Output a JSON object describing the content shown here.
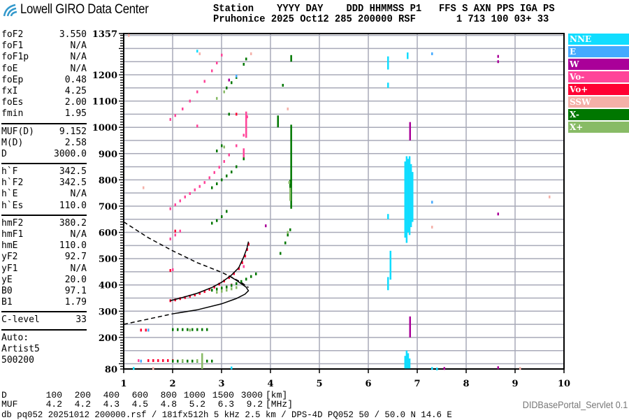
{
  "header": {
    "logo_text": "Lowell GIRO Data Center",
    "line1": "Station    YYYY DAY    DDD HHMMSS P1   FFS S AXN PPS IGA PS",
    "line2": "Pruhonice 2025 Oct12 285 200000 RSF       1 713 100 03+ 33"
  },
  "params": {
    "group1": [
      {
        "label": "foF2",
        "value": "3.550"
      },
      {
        "label": "foF1",
        "value": "N/A"
      },
      {
        "label": "foF1p",
        "value": "N/A"
      },
      {
        "label": "foE",
        "value": "N/A"
      },
      {
        "label": "foEp",
        "value": "0.48"
      },
      {
        "label": "fxI",
        "value": "4.25"
      },
      {
        "label": "foEs",
        "value": "2.00"
      },
      {
        "label": "fmin",
        "value": "1.95"
      }
    ],
    "group2": [
      {
        "label": "MUF(D)",
        "value": "9.152"
      },
      {
        "label": "M(D)",
        "value": "2.58"
      },
      {
        "label": "D",
        "value": "3000.0"
      }
    ],
    "group3": [
      {
        "label": "h`F",
        "value": "342.5"
      },
      {
        "label": "h`F2",
        "value": "342.5"
      },
      {
        "label": "h`E",
        "value": "N/A"
      },
      {
        "label": "h`Es",
        "value": "110.0"
      }
    ],
    "group4": [
      {
        "label": "hmF2",
        "value": "380.2"
      },
      {
        "label": "hmF1",
        "value": "N/A"
      },
      {
        "label": "hmE",
        "value": "110.0"
      },
      {
        "label": "yF2",
        "value": "92.7"
      },
      {
        "label": "yF1",
        "value": "N/A"
      },
      {
        "label": "yE",
        "value": "20.0"
      },
      {
        "label": "B0",
        "value": "97.1"
      },
      {
        "label": "B1",
        "value": "1.79"
      }
    ],
    "group5": [
      {
        "label": "C-level",
        "value": "33"
      }
    ],
    "auto": [
      "Auto:",
      "Artist5",
      "500200"
    ]
  },
  "legend": [
    {
      "label": "NNE",
      "color": "#11ddff"
    },
    {
      "label": "E",
      "color": "#44aaff"
    },
    {
      "label": "W",
      "color": "#aa0099"
    },
    {
      "label": "Vo-",
      "color": "#ff4499"
    },
    {
      "label": "Vo+",
      "color": "#ff0033"
    },
    {
      "label": "SSW",
      "color": "#f4b0a8"
    },
    {
      "label": "X-",
      "color": "#007700"
    },
    {
      "label": "X+",
      "color": "#88bb66"
    }
  ],
  "muf_table": {
    "d_label": "D",
    "d_values": [
      "100",
      "200",
      "400",
      "600",
      "800",
      "1000",
      "1500",
      "3000"
    ],
    "d_unit": "[km]",
    "muf_label": "MUF",
    "muf_values": [
      "4.2",
      "4.2",
      "4.3",
      "4.5",
      "4.8",
      "5.2",
      "6.3",
      "9.2"
    ],
    "muf_unit": "[MHz]"
  },
  "footer": {
    "info": "db pq052 20251012 200000.rsf / 181fx512h 5 kHz 2.5 km / DPS-4D PQ052 50 / 50.0 N 14.6 E",
    "servlet": "DIDBasePortal_Servlet 0.1"
  },
  "chart_data": {
    "type": "scatter",
    "xlim": [
      1,
      10
    ],
    "ylim": [
      80,
      1357
    ],
    "x_ticks": [
      "1",
      "2",
      "3",
      "4",
      "5",
      "6",
      "7",
      "8",
      "9",
      "10"
    ],
    "y_ticks": [
      "1357",
      "1200",
      "1100",
      "1000",
      "900",
      "800",
      "700",
      "600",
      "500",
      "400",
      "300",
      "200",
      "80"
    ],
    "grid": true,
    "legend_position": "right",
    "traces": [
      {
        "legend": "Vo+",
        "points": [
          [
            1.95,
            340
          ],
          [
            2.05,
            343
          ],
          [
            2.15,
            348
          ],
          [
            2.25,
            352
          ],
          [
            2.35,
            357
          ],
          [
            2.45,
            362
          ],
          [
            2.55,
            368
          ],
          [
            2.65,
            375
          ],
          [
            2.75,
            383
          ],
          [
            2.85,
            392
          ],
          [
            2.95,
            403
          ],
          [
            3.05,
            415
          ],
          [
            3.15,
            428
          ],
          [
            3.25,
            443
          ],
          [
            3.35,
            462
          ],
          [
            3.42,
            485
          ],
          [
            3.48,
            510
          ],
          [
            3.52,
            535
          ],
          [
            3.55,
            555
          ],
          [
            1.5,
            112
          ],
          [
            1.6,
            112
          ],
          [
            1.7,
            112
          ],
          [
            1.8,
            112
          ],
          [
            1.9,
            112
          ],
          [
            2.0,
            112
          ],
          [
            1.35,
            228
          ],
          [
            1.45,
            228
          ],
          [
            1.5,
            228
          ],
          [
            1.95,
            455
          ],
          [
            2.05,
            605
          ],
          [
            3.3,
            1050
          ]
        ],
        "spans": []
      },
      {
        "legend": "Vo-",
        "points": [
          [
            1.95,
            575
          ],
          [
            2.05,
            590
          ],
          [
            2.15,
            605
          ],
          [
            2.0,
            458
          ],
          [
            1.95,
            690
          ],
          [
            2.05,
            705
          ],
          [
            2.15,
            720
          ],
          [
            2.25,
            735
          ],
          [
            2.35,
            748
          ],
          [
            2.45,
            762
          ],
          [
            2.55,
            775
          ],
          [
            2.65,
            790
          ],
          [
            2.75,
            808
          ],
          [
            2.85,
            828
          ],
          [
            2.95,
            848
          ],
          [
            3.05,
            870
          ],
          [
            3.15,
            895
          ],
          [
            3.3,
            930
          ],
          [
            3.45,
            970
          ],
          [
            3.5,
            1000
          ],
          [
            3.52,
            1040
          ],
          [
            1.95,
            1030
          ],
          [
            2.05,
            1045
          ],
          [
            2.2,
            1070
          ],
          [
            2.35,
            1100
          ],
          [
            2.5,
            1135
          ],
          [
            2.65,
            1175
          ],
          [
            2.8,
            1215
          ],
          [
            2.9,
            1245
          ],
          [
            3.0,
            1275
          ],
          [
            2.5,
            1005
          ],
          [
            3.2,
            400
          ],
          [
            3.45,
            470
          ],
          [
            1.3,
            112
          ],
          [
            2.6,
            112
          ]
        ],
        "spans": [
          [
            3.5,
            960,
            1060
          ],
          [
            3.45,
            880,
            920
          ]
        ]
      },
      {
        "legend": "X-",
        "points": [
          [
            2.8,
            380
          ],
          [
            2.9,
            384
          ],
          [
            3.0,
            388
          ],
          [
            3.1,
            392
          ],
          [
            3.2,
            398
          ],
          [
            3.3,
            405
          ],
          [
            3.4,
            413
          ],
          [
            3.5,
            422
          ],
          [
            3.6,
            432
          ],
          [
            3.7,
            442
          ],
          [
            2.8,
            635
          ],
          [
            2.9,
            645
          ],
          [
            3.0,
            660
          ],
          [
            3.1,
            680
          ],
          [
            2.8,
            770
          ],
          [
            2.9,
            785
          ],
          [
            3.0,
            800
          ],
          [
            3.1,
            815
          ],
          [
            3.2,
            830
          ],
          [
            3.3,
            850
          ],
          [
            3.45,
            880
          ],
          [
            2.9,
            910
          ],
          [
            3.0,
            930
          ],
          [
            3.1,
            1150
          ],
          [
            3.2,
            1170
          ],
          [
            3.3,
            1190
          ],
          [
            3.45,
            1240
          ],
          [
            3.5,
            1260
          ],
          [
            4.2,
            520
          ],
          [
            4.3,
            560
          ],
          [
            4.35,
            590
          ],
          [
            4.4,
            610
          ],
          [
            4.25,
            1160
          ],
          [
            2.0,
            110
          ],
          [
            2.1,
            110
          ],
          [
            2.2,
            110
          ],
          [
            2.3,
            110
          ],
          [
            2.4,
            110
          ],
          [
            2.5,
            110
          ],
          [
            2.6,
            110
          ],
          [
            2.7,
            110
          ],
          [
            2.8,
            110
          ],
          [
            2.0,
            230
          ],
          [
            2.1,
            230
          ],
          [
            2.2,
            230
          ],
          [
            2.3,
            230
          ],
          [
            2.4,
            230
          ],
          [
            2.5,
            230
          ],
          [
            2.6,
            230
          ],
          [
            2.7,
            230
          ],
          [
            3.15,
            1050
          ]
        ],
        "spans": [
          [
            4.42,
            690,
            1010
          ],
          [
            4.15,
            1000,
            1045
          ],
          [
            4.42,
            1250,
            1275
          ],
          [
            4.4,
            760,
            800
          ]
        ]
      },
      {
        "legend": "X+",
        "points": [
          [
            2.9,
            372
          ],
          [
            3.0,
            376
          ],
          [
            3.1,
            380
          ],
          [
            3.2,
            385
          ],
          [
            3.3,
            390
          ],
          [
            4.35,
            600
          ],
          [
            4.38,
            790
          ],
          [
            3.05,
            925
          ],
          [
            2.2,
            112
          ],
          [
            2.5,
            112
          ],
          [
            2.35,
            228
          ],
          [
            2.9,
            1110
          ],
          [
            3.05,
            1135
          ]
        ],
        "spans": [
          [
            4.4,
            720,
            770
          ],
          [
            2.6,
            80,
            140
          ]
        ]
      },
      {
        "legend": "NNE",
        "points": [
          [
            6.8,
            1270
          ],
          [
            7.3,
            82
          ],
          [
            7.4,
            80
          ],
          [
            1.2,
            82
          ],
          [
            3.2,
            84
          ],
          [
            2.5,
            1290
          ]
        ],
        "spans": [
          [
            6.75,
            580,
            870
          ],
          [
            6.78,
            560,
            890
          ],
          [
            6.81,
            600,
            880
          ],
          [
            6.84,
            590,
            890
          ],
          [
            6.87,
            620,
            860
          ],
          [
            6.9,
            640,
            830
          ],
          [
            6.75,
            82,
            130
          ],
          [
            6.78,
            82,
            150
          ],
          [
            6.81,
            82,
            140
          ],
          [
            6.84,
            82,
            120
          ],
          [
            6.4,
            380,
            430
          ],
          [
            6.45,
            420,
            530
          ],
          [
            6.4,
            1150,
            1170
          ],
          [
            6.4,
            1220,
            1270
          ],
          [
            6.8,
            1260,
            1285
          ],
          [
            6.4,
            650,
            670
          ]
        ]
      },
      {
        "legend": "E",
        "points": [
          [
            7.3,
            715
          ],
          [
            1.35,
            110
          ],
          [
            1.5,
            228
          ],
          [
            3.3,
            1195
          ],
          [
            7.3,
            1280
          ]
        ],
        "spans": []
      },
      {
        "legend": "W",
        "points": [
          [
            8.65,
            1250
          ],
          [
            8.65,
            1270
          ],
          [
            8.65,
            670
          ],
          [
            8.65,
            85
          ],
          [
            7.55,
            82
          ],
          [
            3.9,
            625
          ],
          [
            3.15,
            1180
          ]
        ],
        "spans": [
          [
            6.85,
            200,
            280
          ],
          [
            6.85,
            950,
            1020
          ]
        ]
      },
      {
        "legend": "SSW",
        "points": [
          [
            1.6,
            82
          ],
          [
            9.1,
            82
          ],
          [
            1.1,
            1350
          ],
          [
            2.55,
            1280
          ],
          [
            3.6,
            1280
          ],
          [
            7.3,
            620
          ],
          [
            9.7,
            735
          ],
          [
            1.4,
            770
          ],
          [
            4.35,
            1070
          ]
        ],
        "spans": []
      }
    ],
    "profile_solid": [
      [
        [
          2.0,
          290
        ],
        [
          2.5,
          305
        ],
        [
          3.0,
          328
        ],
        [
          3.3,
          348
        ],
        [
          3.48,
          365
        ],
        [
          3.55,
          378
        ],
        [
          3.5,
          392
        ],
        [
          3.4,
          405
        ],
        [
          3.3,
          418
        ],
        [
          3.15,
          435
        ]
      ],
      [
        [
          1.95,
          340
        ],
        [
          2.2,
          352
        ],
        [
          2.5,
          368
        ],
        [
          2.8,
          390
        ],
        [
          3.0,
          410
        ],
        [
          3.2,
          437
        ],
        [
          3.35,
          465
        ],
        [
          3.45,
          505
        ],
        [
          3.52,
          540
        ],
        [
          3.55,
          565
        ]
      ]
    ],
    "profile_dashed": [
      [
        [
          1.0,
          250
        ],
        [
          1.5,
          270
        ],
        [
          2.0,
          290
        ]
      ],
      [
        [
          1.0,
          640
        ],
        [
          1.5,
          580
        ],
        [
          2.0,
          530
        ],
        [
          2.5,
          485
        ],
        [
          3.0,
          448
        ],
        [
          3.2,
          430
        ],
        [
          3.4,
          410
        ],
        [
          3.55,
          390
        ]
      ]
    ]
  }
}
